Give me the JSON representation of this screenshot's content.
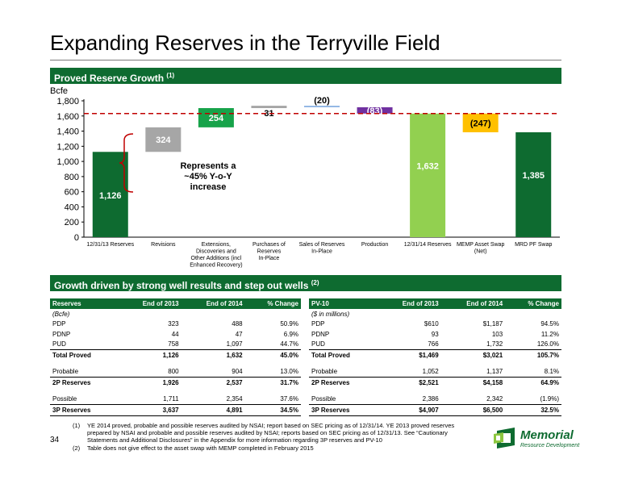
{
  "page": {
    "title": "Expanding Reserves in the Terryville Field",
    "page_number": "34"
  },
  "section1": {
    "heading": "Proved Reserve Growth",
    "note": "(1)"
  },
  "section2": {
    "heading": "Growth driven by strong well results and step out wells",
    "note": "(2)"
  },
  "chart_data": {
    "type": "bar",
    "subtype": "waterfall",
    "ylabel": "Bcfe",
    "ylim": [
      0,
      1800
    ],
    "yticks": [
      "0",
      "200",
      "400",
      "600",
      "800",
      "1,000",
      "1,200",
      "1,400",
      "1,600",
      "1,800"
    ],
    "grid": false,
    "reference_line": 1632,
    "categories": [
      [
        "12/31/13 Reserves"
      ],
      [
        "Revisions"
      ],
      [
        "Extensions,",
        "Discoveries and",
        "Other Additions (incl",
        "Enhanced Recovery)"
      ],
      [
        "Purchases of",
        "Reserves",
        "In-Place"
      ],
      [
        "Sales of Reserves",
        "In-Place"
      ],
      [
        "Production"
      ],
      [
        "12/31/14 Reserves"
      ],
      [
        "MEMP Asset Swap",
        "(Net)"
      ],
      [
        "MRD PF Swap"
      ]
    ],
    "bars": [
      {
        "base": 0,
        "top": 1126,
        "label": "1,126",
        "color": "#0e6b30",
        "label_color": "#ffffff",
        "label_pos": "inside-low"
      },
      {
        "base": 1126,
        "top": 1450,
        "label": "324",
        "color": "#a6a6a6",
        "label_color": "#ffffff",
        "label_pos": "inside"
      },
      {
        "base": 1450,
        "top": 1704,
        "label": "254",
        "color": "#17a34a",
        "label_color": "#ffffff",
        "label_pos": "inside"
      },
      {
        "base": 1704,
        "top": 1735,
        "label": "31",
        "color": "#a6a6a6",
        "label_color": "#000000",
        "label_pos": "below"
      },
      {
        "base": 1715,
        "top": 1735,
        "label": "(20)",
        "color": "#8eb4e3",
        "label_color": "#000000",
        "label_pos": "above"
      },
      {
        "base": 1632,
        "top": 1715,
        "label": "(83)",
        "color": "#7030a0",
        "label_color": "#ffffff",
        "label_pos": "inside"
      },
      {
        "base": 0,
        "top": 1632,
        "label": "1,632",
        "color": "#92d050",
        "label_color": "#ffffff",
        "label_pos": "inside-mid"
      },
      {
        "base": 1385,
        "top": 1632,
        "label": "(247)",
        "color": "#ffc000",
        "label_color": "#000000",
        "label_pos": "inside"
      },
      {
        "base": 0,
        "top": 1385,
        "label": "1,385",
        "color": "#0e6b30",
        "label_color": "#ffffff",
        "label_pos": "inside-mid"
      }
    ],
    "annotation": "Represents a ~45% Y-o-Y increase"
  },
  "reserves_table": {
    "headers": [
      "Reserves",
      "End of 2013",
      "End of 2014",
      "% Change"
    ],
    "unit": "(Bcfe)",
    "rows": [
      {
        "kind": "row",
        "cells": [
          "PDP",
          "323",
          "488",
          "50.9%"
        ]
      },
      {
        "kind": "row",
        "cells": [
          "PDNP",
          "44",
          "47",
          "6.9%"
        ]
      },
      {
        "kind": "row",
        "cells": [
          "PUD",
          "758",
          "1,097",
          "44.7%"
        ]
      },
      {
        "kind": "tot",
        "cells": [
          "Total Proved",
          "1,126",
          "1,632",
          "45.0%"
        ]
      },
      {
        "kind": "gap",
        "cells": [
          "",
          "",
          "",
          ""
        ]
      },
      {
        "kind": "row",
        "cells": [
          "Probable",
          "800",
          "904",
          "13.0%"
        ]
      },
      {
        "kind": "tot",
        "cells": [
          "2P Reserves",
          "1,926",
          "2,537",
          "31.7%"
        ]
      },
      {
        "kind": "gap",
        "cells": [
          "",
          "",
          "",
          ""
        ]
      },
      {
        "kind": "row",
        "cells": [
          "Possible",
          "1,711",
          "2,354",
          "37.6%"
        ]
      },
      {
        "kind": "tot last",
        "cells": [
          "3P Reserves",
          "3,637",
          "4,891",
          "34.5%"
        ]
      }
    ]
  },
  "pv10_table": {
    "headers": [
      "PV-10",
      "End of 2013",
      "End of 2014",
      "% Change"
    ],
    "unit": "($ in millions)",
    "rows": [
      {
        "kind": "row",
        "cells": [
          "PDP",
          "$610",
          "$1,187",
          "94.5%"
        ]
      },
      {
        "kind": "row",
        "cells": [
          "PDNP",
          "93",
          "103",
          "11.2%"
        ]
      },
      {
        "kind": "row",
        "cells": [
          "PUD",
          "766",
          "1,732",
          "126.0%"
        ]
      },
      {
        "kind": "tot",
        "cells": [
          "Total Proved",
          "$1,469",
          "$3,021",
          "105.7%"
        ]
      },
      {
        "kind": "gap",
        "cells": [
          "",
          "",
          "",
          ""
        ]
      },
      {
        "kind": "row",
        "cells": [
          "Probable",
          "1,052",
          "1,137",
          "8.1%"
        ]
      },
      {
        "kind": "tot",
        "cells": [
          "2P Reserves",
          "$2,521",
          "$4,158",
          "64.9%"
        ]
      },
      {
        "kind": "gap",
        "cells": [
          "",
          "",
          "",
          ""
        ]
      },
      {
        "kind": "row",
        "cells": [
          "Possible",
          "2,386",
          "2,342",
          "(1.9%)"
        ]
      },
      {
        "kind": "tot last",
        "cells": [
          "3P Reserves",
          "$4,907",
          "$6,500",
          "32.5%"
        ]
      }
    ]
  },
  "footnotes": [
    {
      "num": "(1)",
      "text": "YE 2014 proved, probable and possible reserves audited by NSAI; report based on SEC pricing as of 12/31/14. YE 2013 proved reserves prepared by NSAI and probable and possible reserves audited by NSAI; reports based on SEC pricing as of 12/31/13. See “Cautionary Statements and Additional Disclosures” in the Appendix for more information regarding 3P reserves and PV-10"
    },
    {
      "num": "(2)",
      "text": "Table does not give effect to the asset swap with MEMP completed in February 2015"
    }
  ],
  "logo": {
    "word": "Memorial",
    "sub": "Resource Development",
    "color": "#0e6b30",
    "icon": "memorial-logo-icon"
  }
}
